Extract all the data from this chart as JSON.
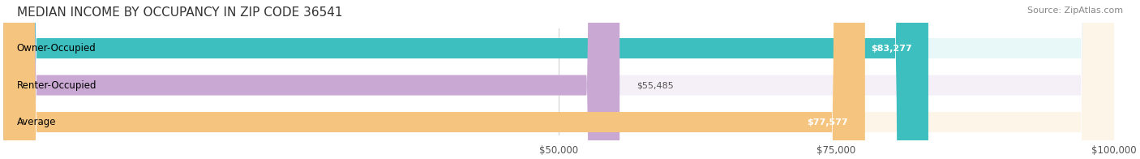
{
  "title": "MEDIAN INCOME BY OCCUPANCY IN ZIP CODE 36541",
  "source": "Source: ZipAtlas.com",
  "categories": [
    "Owner-Occupied",
    "Renter-Occupied",
    "Average"
  ],
  "values": [
    83277,
    55485,
    77577
  ],
  "labels": [
    "$83,277",
    "$55,485",
    "$77,577"
  ],
  "bar_colors": [
    "#3dbfbf",
    "#c9a8d4",
    "#f5c580"
  ],
  "bar_bg_colors": [
    "#e8f8f8",
    "#f5f0f8",
    "#fdf5e8"
  ],
  "xlim": [
    0,
    100000
  ],
  "xticks": [
    50000,
    75000,
    100000
  ],
  "xtick_labels": [
    "$50,000",
    "$75,000",
    "$100,000"
  ],
  "figsize": [
    14.06,
    1.96
  ],
  "dpi": 100,
  "title_fontsize": 11,
  "label_fontsize": 8.5,
  "bar_label_fontsize": 8,
  "source_fontsize": 8
}
